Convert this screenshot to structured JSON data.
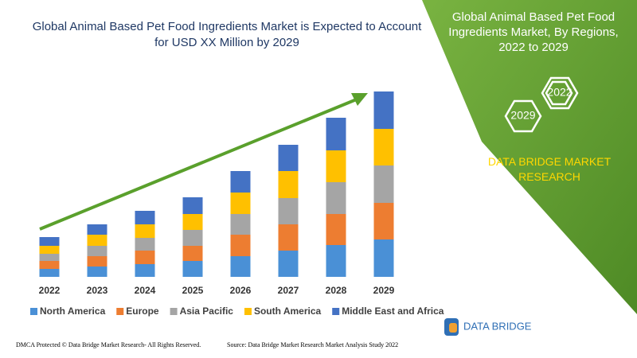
{
  "chart_data": {
    "type": "bar",
    "stacked": true,
    "title": "Global Animal Based Pet Food Ingredients Market is Expected to Account for USD XX Million by 2029",
    "categories": [
      "2022",
      "2023",
      "2024",
      "2025",
      "2026",
      "2027",
      "2028",
      "2029"
    ],
    "series": [
      {
        "name": "North America",
        "color": "#4a90d6",
        "values": [
          10,
          13,
          16,
          20,
          26,
          33,
          40,
          47
        ]
      },
      {
        "name": "Europe",
        "color": "#ed7d31",
        "values": [
          10,
          13,
          17,
          19,
          27,
          33,
          39,
          46
        ]
      },
      {
        "name": "Asia Pacific",
        "color": "#a5a5a5",
        "values": [
          9,
          13,
          16,
          20,
          26,
          33,
          40,
          47
        ]
      },
      {
        "name": "South America",
        "color": "#ffc000",
        "values": [
          10,
          14,
          17,
          20,
          27,
          34,
          40,
          46
        ]
      },
      {
        "name": "Middle East and Africa",
        "color": "#4472c4",
        "values": [
          11,
          13,
          17,
          21,
          27,
          33,
          41,
          47
        ]
      }
    ],
    "legend": "bottom"
  },
  "panel": {
    "title": "Global Animal Based Pet Food Ingredients Market, By Regions, 2022 to 2029",
    "hex_labels": [
      "2022",
      "2029"
    ],
    "brand": "DATA BRIDGE MARKET RESEARCH"
  },
  "logo": "DATA BRIDGE",
  "footer": {
    "left": "DMCA Protected © Data Bridge Market Research- All Rights Reserved.",
    "right": "Source: Data Bridge Market Research Market Analysis Study 2022"
  }
}
